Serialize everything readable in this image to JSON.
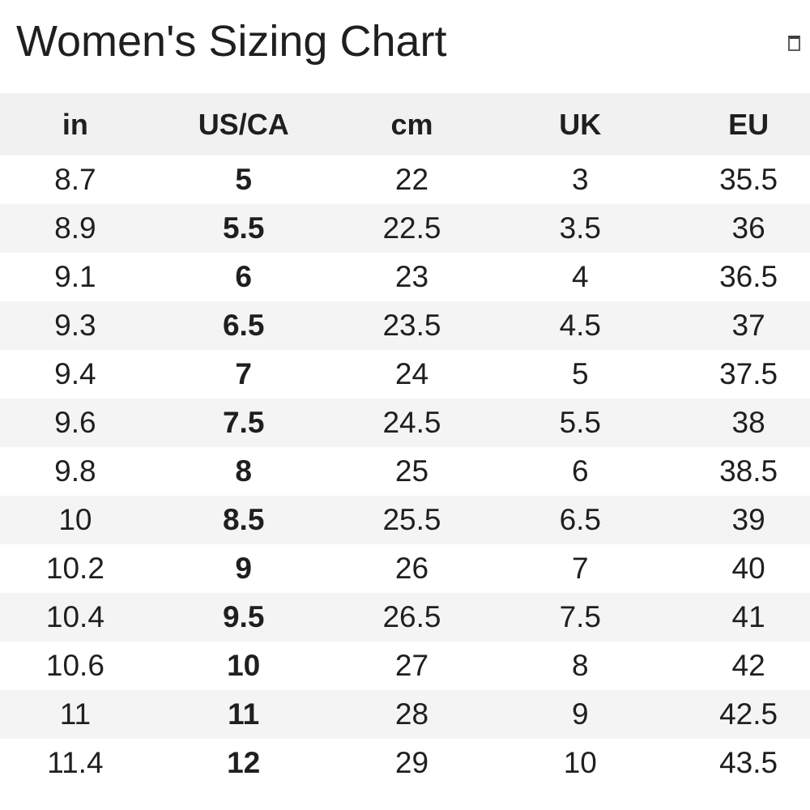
{
  "header": {
    "title": "Women's Sizing Chart",
    "close_icon_glyph": "empty-box"
  },
  "table": {
    "columns": [
      {
        "key": "in",
        "label": "in"
      },
      {
        "key": "us-ca",
        "label": "US/CA"
      },
      {
        "key": "cm",
        "label": "cm"
      },
      {
        "key": "uk",
        "label": "UK"
      },
      {
        "key": "eu",
        "label": "EU"
      }
    ],
    "bold_column_index": 1,
    "rows": [
      [
        "8.7",
        "5",
        "22",
        "3",
        "35.5"
      ],
      [
        "8.9",
        "5.5",
        "22.5",
        "3.5",
        "36"
      ],
      [
        "9.1",
        "6",
        "23",
        "4",
        "36.5"
      ],
      [
        "9.3",
        "6.5",
        "23.5",
        "4.5",
        "37"
      ],
      [
        "9.4",
        "7",
        "24",
        "5",
        "37.5"
      ],
      [
        "9.6",
        "7.5",
        "24.5",
        "5.5",
        "38"
      ],
      [
        "9.8",
        "8",
        "25",
        "6",
        "38.5"
      ],
      [
        "10",
        "8.5",
        "25.5",
        "6.5",
        "39"
      ],
      [
        "10.2",
        "9",
        "26",
        "7",
        "40"
      ],
      [
        "10.4",
        "9.5",
        "26.5",
        "7.5",
        "41"
      ],
      [
        "10.6",
        "10",
        "27",
        "8",
        "42"
      ],
      [
        "11",
        "11",
        "28",
        "9",
        "42.5"
      ],
      [
        "11.4",
        "12",
        "29",
        "10",
        "43.5"
      ]
    ]
  },
  "colors": {
    "background": "#ffffff",
    "header_band": "#f1f1f2",
    "stripe": "#f4f4f5",
    "text": "#1f1f1f"
  }
}
